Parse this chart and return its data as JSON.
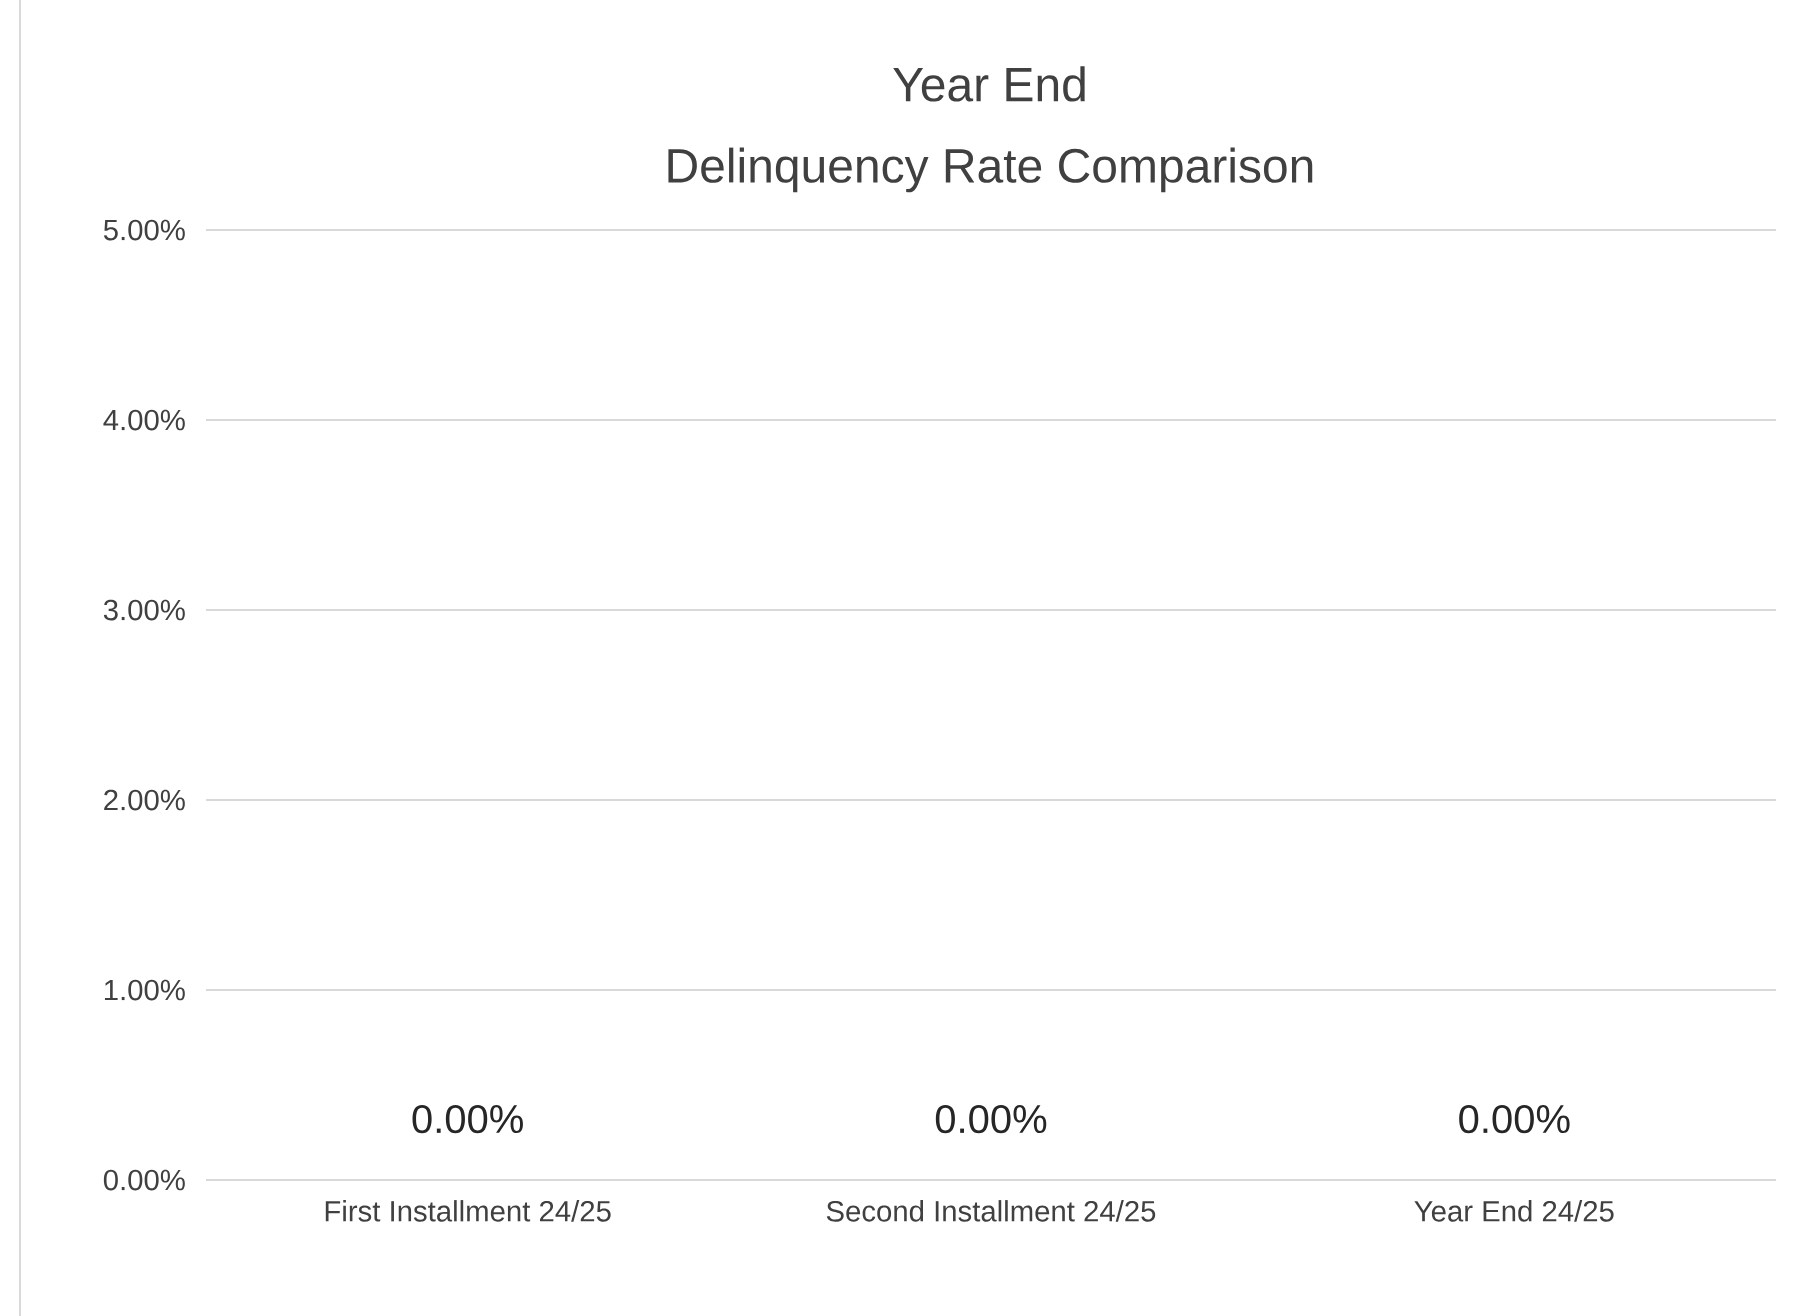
{
  "chart_data": {
    "type": "bar",
    "title": "Year End",
    "subtitle": "Delinquency Rate Comparison",
    "categories": [
      "First Installment 24/25",
      "Second Installment 24/25",
      "Year End 24/25"
    ],
    "values": [
      0,
      0,
      0
    ],
    "value_labels": [
      "0.00%",
      "0.00%",
      "0.00%"
    ],
    "ylim": [
      0,
      5
    ],
    "yticks": [
      {
        "value": 0,
        "label": "0.00%"
      },
      {
        "value": 1,
        "label": "1.00%"
      },
      {
        "value": 2,
        "label": "2.00%"
      },
      {
        "value": 3,
        "label": "3.00%"
      },
      {
        "value": 4,
        "label": "4.00%"
      },
      {
        "value": 5,
        "label": "5.00%"
      }
    ],
    "grid": "y"
  }
}
